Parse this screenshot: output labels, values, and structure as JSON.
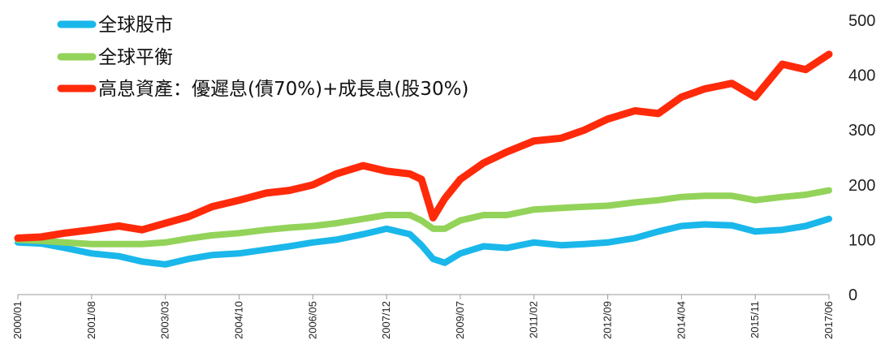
{
  "chart_data": {
    "type": "line",
    "title": "",
    "xlabel": "",
    "ylabel": "",
    "ylim": [
      0,
      500
    ],
    "y_ticks": [
      "0",
      "100",
      "200",
      "300",
      "400",
      "500"
    ],
    "x_tick_labels": [
      "2000/01",
      "2001/08",
      "2003/03",
      "2004/10",
      "2006/05",
      "2007/12",
      "2009/07",
      "2011/02",
      "2012/09",
      "2014/04",
      "2015/11",
      "2017/06"
    ],
    "y_axis_position": "right",
    "legend_position": "top-left",
    "grid": false,
    "series": [
      {
        "name": "全球股市",
        "color": "#1ab7ea",
        "x": [
          "2000/01",
          "2000/07",
          "2001/01",
          "2001/08",
          "2002/03",
          "2002/09",
          "2003/03",
          "2003/09",
          "2004/03",
          "2004/10",
          "2005/05",
          "2005/11",
          "2006/05",
          "2006/11",
          "2007/06",
          "2007/12",
          "2008/06",
          "2008/09",
          "2008/12",
          "2009/03",
          "2009/07",
          "2010/01",
          "2010/07",
          "2011/02",
          "2011/09",
          "2012/03",
          "2012/09",
          "2013/04",
          "2013/10",
          "2014/04",
          "2014/10",
          "2015/05",
          "2015/11",
          "2016/06",
          "2016/12",
          "2017/06"
        ],
        "values": [
          95,
          93,
          85,
          75,
          70,
          60,
          55,
          65,
          72,
          75,
          82,
          88,
          95,
          100,
          110,
          120,
          110,
          90,
          65,
          58,
          75,
          88,
          85,
          95,
          90,
          92,
          95,
          103,
          115,
          125,
          128,
          126,
          115,
          118,
          125,
          138
        ]
      },
      {
        "name": "全球平衡",
        "color": "#93d35a",
        "x": [
          "2000/01",
          "2000/07",
          "2001/01",
          "2001/08",
          "2002/03",
          "2002/09",
          "2003/03",
          "2003/09",
          "2004/03",
          "2004/10",
          "2005/05",
          "2005/11",
          "2006/05",
          "2006/11",
          "2007/06",
          "2007/12",
          "2008/06",
          "2008/09",
          "2008/12",
          "2009/03",
          "2009/07",
          "2010/01",
          "2010/07",
          "2011/02",
          "2011/09",
          "2012/03",
          "2012/09",
          "2013/04",
          "2013/10",
          "2014/04",
          "2014/10",
          "2015/05",
          "2015/11",
          "2016/06",
          "2016/12",
          "2017/06"
        ],
        "values": [
          100,
          98,
          95,
          92,
          92,
          92,
          95,
          102,
          108,
          112,
          118,
          122,
          125,
          130,
          138,
          145,
          145,
          135,
          120,
          120,
          135,
          145,
          145,
          155,
          158,
          160,
          162,
          168,
          172,
          178,
          180,
          180,
          172,
          178,
          182,
          190
        ]
      },
      {
        "name": "高息資產：優遲息(債70%)+成長息(股30%)",
        "color": "#ff2a0a",
        "x": [
          "2000/01",
          "2000/07",
          "2001/01",
          "2001/08",
          "2002/03",
          "2002/09",
          "2003/03",
          "2003/09",
          "2004/03",
          "2004/10",
          "2005/05",
          "2005/11",
          "2006/05",
          "2006/11",
          "2007/06",
          "2007/12",
          "2008/06",
          "2008/09",
          "2008/12",
          "2009/03",
          "2009/07",
          "2010/01",
          "2010/07",
          "2011/02",
          "2011/09",
          "2012/03",
          "2012/09",
          "2013/04",
          "2013/10",
          "2014/04",
          "2014/10",
          "2015/05",
          "2015/11",
          "2016/06",
          "2016/12",
          "2017/06"
        ],
        "values": [
          103,
          105,
          112,
          118,
          125,
          118,
          130,
          142,
          160,
          172,
          185,
          190,
          200,
          220,
          235,
          225,
          220,
          210,
          140,
          175,
          210,
          240,
          260,
          280,
          285,
          300,
          320,
          335,
          330,
          360,
          375,
          385,
          360,
          420,
          410,
          438
        ]
      }
    ]
  }
}
